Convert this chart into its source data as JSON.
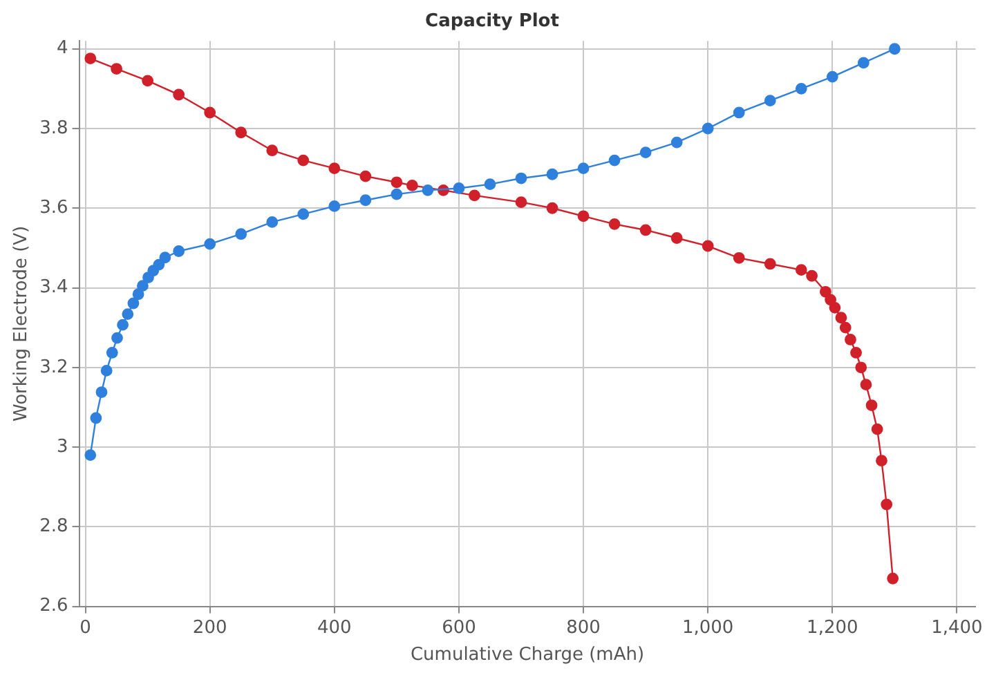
{
  "chart_data": {
    "type": "line",
    "title": "Capacity Plot",
    "xlabel": "Cumulative Charge (mAh)",
    "ylabel": "Working Electrode (V)",
    "xlim": [
      -10,
      1430
    ],
    "ylim": [
      2.6,
      4.02
    ],
    "xticks": [
      0,
      200,
      400,
      600,
      800,
      {
        "value": 1000,
        "label": "1,000"
      },
      {
        "value": 1200,
        "label": "1,200"
      },
      {
        "value": 1400,
        "label": "1,400"
      }
    ],
    "yticks": [
      2.6,
      2.8,
      3,
      3.2,
      3.4,
      3.6,
      3.8,
      4
    ],
    "grid": true,
    "legend": false,
    "marker": "circle",
    "line_style": "solid",
    "series": [
      {
        "color": "#2f80dc",
        "x": [
          8,
          17,
          26,
          34,
          43,
          51,
          60,
          68,
          77,
          85,
          92,
          101,
          109,
          118,
          128,
          150,
          200,
          250,
          300,
          350,
          400,
          450,
          500,
          550,
          600,
          650,
          700,
          750,
          800,
          850,
          900,
          950,
          1000,
          1050,
          1100,
          1150,
          1200,
          1250,
          1300
        ],
        "values": [
          2.98,
          3.073,
          3.138,
          3.192,
          3.237,
          3.274,
          3.307,
          3.334,
          3.361,
          3.384,
          3.405,
          3.426,
          3.443,
          3.458,
          3.476,
          3.492,
          3.51,
          3.535,
          3.565,
          3.585,
          3.605,
          3.62,
          3.635,
          3.645,
          3.65,
          3.66,
          3.675,
          3.685,
          3.7,
          3.72,
          3.74,
          3.765,
          3.8,
          3.84,
          3.87,
          3.9,
          3.93,
          3.965,
          4.0
        ]
      },
      {
        "color": "#d0202a",
        "x": [
          8,
          50,
          100,
          150,
          200,
          250,
          300,
          350,
          400,
          450,
          500,
          525,
          575,
          625,
          700,
          750,
          800,
          850,
          900,
          950,
          1000,
          1050,
          1100,
          1150,
          1167,
          1189,
          1197,
          1204,
          1214,
          1221,
          1229,
          1238,
          1246,
          1254,
          1263,
          1272,
          1279,
          1287,
          1297
        ],
        "values": [
          3.976,
          3.95,
          3.92,
          3.885,
          3.84,
          3.79,
          3.745,
          3.72,
          3.7,
          3.68,
          3.665,
          3.657,
          3.645,
          3.632,
          3.615,
          3.6,
          3.58,
          3.56,
          3.545,
          3.525,
          3.505,
          3.475,
          3.46,
          3.445,
          3.43,
          3.39,
          3.37,
          3.35,
          3.325,
          3.3,
          3.27,
          3.237,
          3.2,
          3.157,
          3.105,
          3.045,
          2.966,
          2.856,
          2.67
        ]
      }
    ]
  }
}
